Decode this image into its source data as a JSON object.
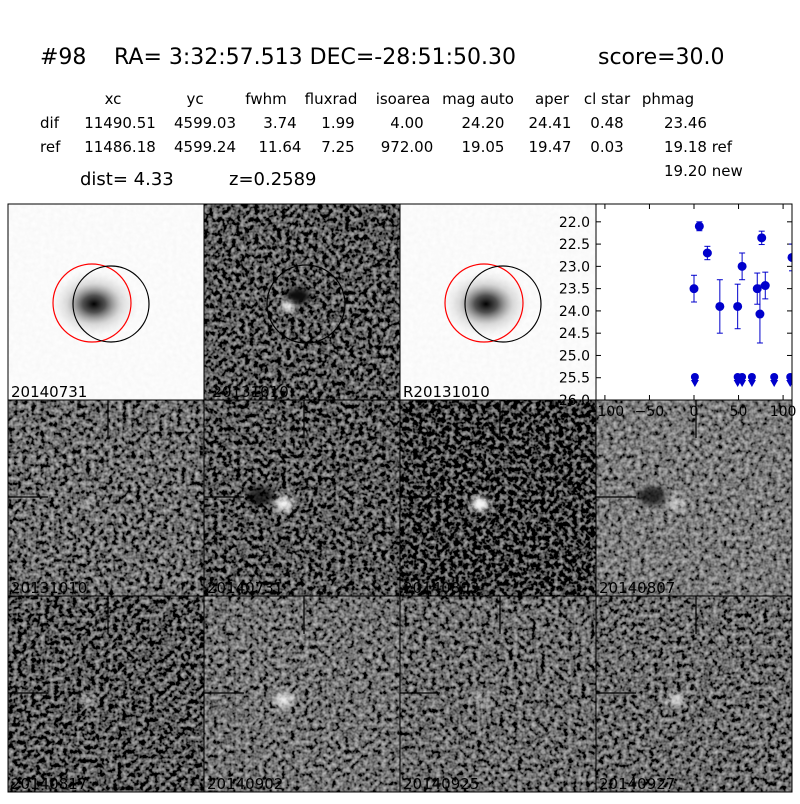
{
  "header": {
    "id": "#98",
    "coords": "RA= 3:32:57.513 DEC=-28:51:50.30",
    "score": "score=30.0"
  },
  "table": {
    "columns": [
      "xc",
      "yc",
      "fwhm",
      "fluxrad",
      "isoarea",
      "mag auto",
      "aper",
      "cl star",
      "phmag"
    ],
    "rows": [
      [
        "dif",
        "11490.51",
        "4599.03",
        "3.74",
        "1.99",
        "4.00",
        "24.20",
        "24.41",
        "0.48",
        "23.46"
      ],
      [
        "ref",
        "11486.18",
        "4599.24",
        "11.64",
        "7.25",
        "972.00",
        "19.05",
        "19.47",
        "0.03",
        "19.18 ref"
      ]
    ],
    "extra": "19.20 new"
  },
  "info": {
    "dist": "dist=  4.33",
    "z": "z=0.2589"
  },
  "stamps": [
    {
      "label": "20140731"
    },
    {
      "label": "-20131010"
    },
    {
      "label": "R20131010"
    },
    {
      "label": "20131010"
    },
    {
      "label": "20140731",
      "label_color": "#ff0000"
    },
    {
      "label": "20140803"
    },
    {
      "label": "20140807"
    },
    {
      "label": "20140817"
    },
    {
      "label": "20140902"
    },
    {
      "label": "20140925"
    },
    {
      "label": "20140927"
    }
  ],
  "chart_data": {
    "type": "scatter",
    "xlim": [
      -110,
      110
    ],
    "ylim": [
      26.0,
      21.6
    ],
    "xticks": [
      -100,
      -50,
      0,
      50,
      100
    ],
    "yticks": [
      {
        "value": 22,
        "label": "22.0"
      },
      {
        "value": 22.5,
        "label": "22.5"
      },
      {
        "value": 23,
        "label": "23.0"
      },
      {
        "value": 23.5,
        "label": "23.5"
      },
      {
        "value": 24,
        "label": "24.0"
      },
      {
        "value": 24.5,
        "label": "24.5"
      },
      {
        "value": 25,
        "label": "25.0"
      },
      {
        "value": 25.5,
        "label": "25.5"
      },
      {
        "value": 26,
        "label": "26.0"
      }
    ],
    "series": [
      {
        "color": "#0000cc",
        "x": [
          0,
          6,
          15,
          29,
          49,
          54,
          71,
          74,
          76,
          80,
          110
        ],
        "values": [
          23.5,
          22.1,
          22.7,
          23.9,
          23.9,
          23.0,
          23.5,
          24.07,
          22.36,
          23.43,
          22.8
        ],
        "errors": [
          0.3,
          0.1,
          0.15,
          0.6,
          0.5,
          0.3,
          0.35,
          0.65,
          0.15,
          0.3,
          0.3
        ]
      },
      {
        "color": "#0000cc",
        "x": [
          1,
          49,
          54,
          65,
          90,
          108
        ],
        "values": [
          25.55,
          25.55,
          25.55,
          25.55,
          25.55,
          25.55
        ]
      }
    ]
  }
}
